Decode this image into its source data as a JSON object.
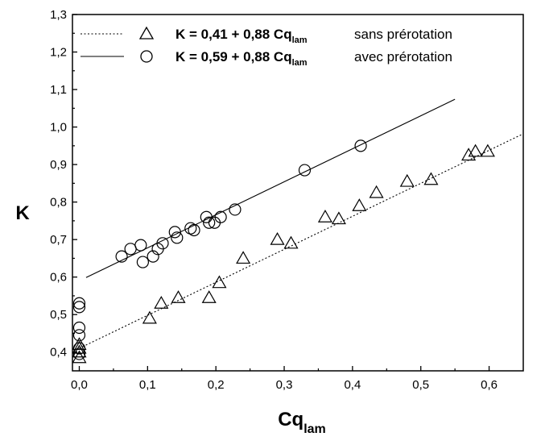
{
  "chart_data": {
    "type": "scatter",
    "xlabel": "Cq",
    "xlabel_sub": "lam",
    "ylabel": "K",
    "xlim": [
      -0.01,
      0.65
    ],
    "ylim": [
      0.35,
      1.3
    ],
    "xticks": [
      "0,0",
      "0,1",
      "0,2",
      "0,3",
      "0,4",
      "0,5",
      "0,6"
    ],
    "xtick_values": [
      0.0,
      0.1,
      0.2,
      0.3,
      0.4,
      0.5,
      0.6
    ],
    "yticks": [
      "0,4",
      "0,5",
      "0,6",
      "0,7",
      "0,8",
      "0,9",
      "1,0",
      "1,1",
      "1,2",
      "1,3"
    ],
    "ytick_values": [
      0.4,
      0.5,
      0.6,
      0.7,
      0.8,
      0.9,
      1.0,
      1.1,
      1.2,
      1.3
    ],
    "grid": false,
    "legend_position": "top-left",
    "series": [
      {
        "marker": "triangle",
        "line_style": "dotted",
        "fit": {
          "intercept": 0.41,
          "slope": 0.88,
          "x_range": [
            0.0,
            0.65
          ]
        },
        "legend_formula_main": "K = 0,41 + 0,88 Cq",
        "legend_formula_sub": "lam",
        "legend_desc": "sans prérotation",
        "points": [
          [
            0.0,
            0.385
          ],
          [
            0.0,
            0.4
          ],
          [
            0.0,
            0.41
          ],
          [
            0.0,
            0.42
          ],
          [
            0.103,
            0.49
          ],
          [
            0.12,
            0.53
          ],
          [
            0.145,
            0.545
          ],
          [
            0.19,
            0.545
          ],
          [
            0.205,
            0.585
          ],
          [
            0.24,
            0.65
          ],
          [
            0.29,
            0.7
          ],
          [
            0.31,
            0.69
          ],
          [
            0.36,
            0.76
          ],
          [
            0.38,
            0.755
          ],
          [
            0.41,
            0.79
          ],
          [
            0.435,
            0.825
          ],
          [
            0.48,
            0.855
          ],
          [
            0.515,
            0.86
          ],
          [
            0.57,
            0.925
          ],
          [
            0.58,
            0.935
          ],
          [
            0.598,
            0.935
          ]
        ]
      },
      {
        "marker": "circle",
        "line_style": "solid",
        "fit": {
          "intercept": 0.59,
          "slope": 0.88,
          "x_range": [
            0.01,
            0.55
          ]
        },
        "legend_formula_main": "K = 0,59 + 0,88 Cq",
        "legend_formula_sub": "lam",
        "legend_desc": "avec prérotation",
        "points": [
          [
            0.0,
            0.395
          ],
          [
            0.0,
            0.41
          ],
          [
            0.0,
            0.445
          ],
          [
            0.0,
            0.465
          ],
          [
            0.0,
            0.52
          ],
          [
            0.0,
            0.53
          ],
          [
            0.062,
            0.655
          ],
          [
            0.075,
            0.675
          ],
          [
            0.09,
            0.685
          ],
          [
            0.093,
            0.64
          ],
          [
            0.108,
            0.655
          ],
          [
            0.115,
            0.675
          ],
          [
            0.122,
            0.69
          ],
          [
            0.14,
            0.72
          ],
          [
            0.143,
            0.705
          ],
          [
            0.163,
            0.73
          ],
          [
            0.168,
            0.725
          ],
          [
            0.186,
            0.76
          ],
          [
            0.19,
            0.745
          ],
          [
            0.198,
            0.745
          ],
          [
            0.207,
            0.76
          ],
          [
            0.228,
            0.78
          ],
          [
            0.33,
            0.885
          ],
          [
            0.412,
            0.95
          ]
        ]
      }
    ]
  }
}
